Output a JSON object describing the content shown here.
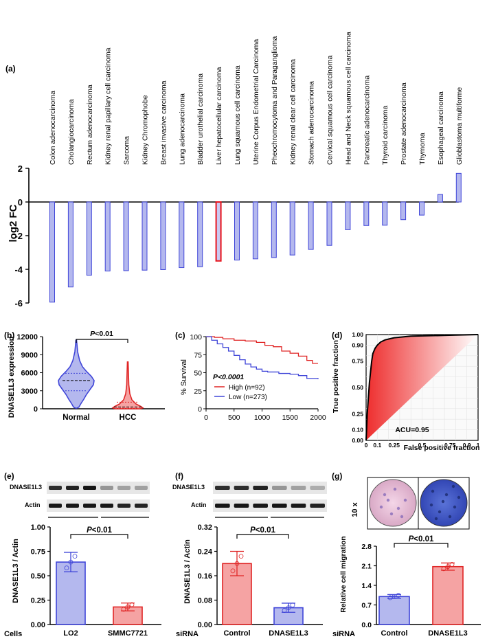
{
  "panel_labels": {
    "a": "(a)",
    "b": "(b)",
    "c": "(c)",
    "d": "(d)",
    "e": "(e)",
    "f": "(f)",
    "g": "(g)"
  },
  "colors": {
    "blue_fill": "#b4b8ee",
    "blue_stroke": "#3f45d8",
    "red_fill": "#f5a3a3",
    "red_stroke": "#e02525",
    "highlight": "#e8141c"
  },
  "chart_data": [
    {
      "id": "a",
      "type": "bar",
      "ylabel": "log2 FC",
      "ylim": [
        -6,
        2
      ],
      "yticks": [
        2,
        0,
        -2,
        -4,
        -6
      ],
      "highlight": "Liver hepatocellular carcinoma",
      "categories": [
        "Colon adenocarcinoma",
        "Cholangiocarcinoma",
        "Rectum adenocarcinoma",
        "Kidney renal papillary cell carcinoma",
        "Sarcoma",
        "Kidney Chromophobe",
        "Breast invasive carcinoma",
        "Lung adenocarcinoma",
        "Bladder urothelial carcinoma",
        "Liver hepatocellular carcinoma",
        "Lung squamous cell carcinoma",
        "Uterine Corpus Endometrial Carcinoma",
        "Pheochromocytoma and Paraganglioma",
        "Kidney renal clear cell carcinoma",
        "Stomach adenocarcinoma",
        "Cervical squamous cell carcinoma",
        "Head and Neck squamous cell carcinoma",
        "Pancreatic adenocarcinoma",
        "Thyroid carcinoma",
        "Prostate adenocarcinoma",
        "Thymoma",
        "Esophageal carcinoma",
        "Glioblastoma multiforme"
      ],
      "values": [
        -5.95,
        -5.05,
        -4.35,
        -4.1,
        -4.08,
        -4.05,
        -4.02,
        -3.9,
        -3.85,
        -3.5,
        -3.45,
        -3.38,
        -3.3,
        -3.15,
        -2.82,
        -2.58,
        -1.65,
        -1.4,
        -1.38,
        -1.05,
        -0.78,
        0.45,
        1.7
      ]
    },
    {
      "id": "b",
      "type": "violin",
      "ylabel": "DNASE1L3 expression",
      "ylim": [
        0,
        12000
      ],
      "yticks": [
        "0",
        "3000",
        "6000",
        "9000",
        "12000"
      ],
      "categories": [
        "Normal",
        "HCC"
      ],
      "annotation_p": "P",
      "annotation_rest": "<0.01",
      "series": [
        {
          "name": "Normal",
          "median": 4700,
          "q1": 3000,
          "q3": 5900,
          "max": 11400,
          "min": 100
        },
        {
          "name": "HCC",
          "median": 300,
          "q1": 80,
          "q3": 1100,
          "max": 7800,
          "min": 0
        }
      ]
    },
    {
      "id": "c",
      "type": "line",
      "ylabel": "% Survival",
      "xlim": [
        0,
        2000
      ],
      "ylim": [
        0,
        100
      ],
      "xticks": [
        "0",
        "500",
        "1000",
        "1500",
        "2000"
      ],
      "yticks": [
        "0",
        "25",
        "50",
        "75",
        "100"
      ],
      "pvalue": "P<0.0001",
      "series": [
        {
          "name": "High (n=92)",
          "points": [
            [
              0,
              100
            ],
            [
              150,
              99
            ],
            [
              300,
              97
            ],
            [
              500,
              95
            ],
            [
              700,
              94
            ],
            [
              900,
              92
            ],
            [
              1050,
              88
            ],
            [
              1200,
              86
            ],
            [
              1350,
              80
            ],
            [
              1500,
              77
            ],
            [
              1650,
              73
            ],
            [
              1800,
              67
            ],
            [
              1900,
              63
            ],
            [
              2000,
              63
            ]
          ]
        },
        {
          "name": "Low (n=273)",
          "points": [
            [
              0,
              100
            ],
            [
              100,
              95
            ],
            [
              200,
              90
            ],
            [
              300,
              85
            ],
            [
              400,
              80
            ],
            [
              500,
              74
            ],
            [
              600,
              68
            ],
            [
              700,
              62
            ],
            [
              800,
              58
            ],
            [
              900,
              55
            ],
            [
              1000,
              52
            ],
            [
              1100,
              51
            ],
            [
              1300,
              49
            ],
            [
              1500,
              48
            ],
            [
              1650,
              46
            ],
            [
              1800,
              42
            ],
            [
              2000,
              41
            ]
          ]
        }
      ]
    },
    {
      "id": "d",
      "type": "roc",
      "xlabel": "False positive fraction",
      "ylabel": "True positive fraction",
      "xticks": [
        "0",
        "0.1",
        "0.25",
        "0.5",
        "0.75",
        "0.9",
        "1"
      ],
      "yticks": [
        "0.00",
        "0.10",
        "0.25",
        "0.50",
        "0.75",
        "0.90",
        "1.00"
      ],
      "auc_label": "ACU=0.95",
      "points": [
        [
          0,
          0
        ],
        [
          0.005,
          0.12
        ],
        [
          0.01,
          0.25
        ],
        [
          0.02,
          0.4
        ],
        [
          0.03,
          0.55
        ],
        [
          0.04,
          0.65
        ],
        [
          0.05,
          0.75
        ],
        [
          0.06,
          0.82
        ],
        [
          0.08,
          0.87
        ],
        [
          0.1,
          0.9
        ],
        [
          0.13,
          0.93
        ],
        [
          0.17,
          0.95
        ],
        [
          0.25,
          0.97
        ],
        [
          0.4,
          0.985
        ],
        [
          0.6,
          0.99
        ],
        [
          0.8,
          0.995
        ],
        [
          1,
          1
        ]
      ]
    },
    {
      "id": "e",
      "type": "bar",
      "ylabel": "DNASE1L3 / Actin",
      "ylim": [
        0,
        1
      ],
      "yticks": [
        "0.00",
        "0.25",
        "0.50",
        "0.75",
        "1.00"
      ],
      "xlabel_left": "Cells",
      "categories": [
        "LO2",
        "SMMC7721"
      ],
      "values": [
        0.64,
        0.18
      ],
      "errors": [
        0.1,
        0.04
      ],
      "annotation_p": "P",
      "annotation_rest": "<0.01",
      "blot_labels": [
        "DNASE1L3",
        "Actin"
      ]
    },
    {
      "id": "f",
      "type": "bar",
      "ylabel": "DNASE1L3 / Actin",
      "ylim": [
        0,
        0.32
      ],
      "yticks": [
        "0.00",
        "0.08",
        "0.16",
        "0.24",
        "0.32"
      ],
      "xlabel_left": "siRNA",
      "categories": [
        "Control",
        "DNASE1L3"
      ],
      "values": [
        0.2,
        0.055
      ],
      "errors": [
        0.04,
        0.015
      ],
      "annotation_p": "P",
      "annotation_rest": "<0.01",
      "blot_labels": [
        "DNASE1L3",
        "Actin"
      ]
    },
    {
      "id": "g",
      "type": "bar",
      "ylabel": "Relative cell migration",
      "ylim": [
        0,
        2.8
      ],
      "yticks": [
        "0.0",
        "0.7",
        "1.4",
        "2.1",
        "2.8"
      ],
      "xlabel_left": "siRNA",
      "categories": [
        "Control",
        "DNASE1L3"
      ],
      "values": [
        1.0,
        2.07
      ],
      "errors": [
        0.07,
        0.13
      ],
      "annotation_p": "P",
      "annotation_rest": "<0.01",
      "magnification": "10 x"
    }
  ]
}
